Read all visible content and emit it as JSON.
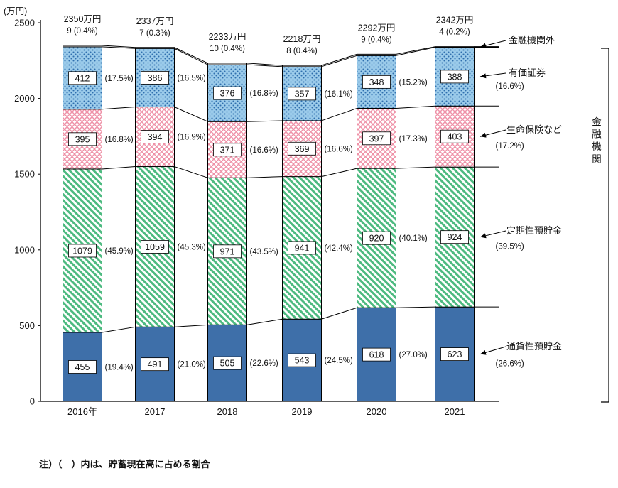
{
  "figure": {
    "y_unit": "(万円)",
    "note": "注）（　）内は、貯蓄現在高に占める割合"
  },
  "legend": {
    "items": [
      {
        "label": "金融機関外"
      },
      {
        "label": "有価証券"
      },
      {
        "label": "生命保険など"
      },
      {
        "label": "定期性預貯金"
      },
      {
        "label": "通貨性預貯金"
      }
    ],
    "group_label": "金融機関"
  },
  "chart_data": {
    "type": "bar",
    "stacked": true,
    "title": "",
    "xlabel": "",
    "ylabel": "(万円)",
    "ylim": [
      0,
      2500
    ],
    "yticks": [
      0,
      500,
      1000,
      1500,
      2000,
      2500
    ],
    "grid": false,
    "legend_position": "right",
    "categories": [
      "2016年",
      "2017",
      "2018",
      "2019",
      "2020",
      "2021"
    ],
    "totals": [
      "2350万円",
      "2337万円",
      "2233万円",
      "2218万円",
      "2292万円",
      "2342万円"
    ],
    "series": [
      {
        "name": "通貨性預貯金",
        "pattern": "solid",
        "values": [
          455,
          491,
          505,
          543,
          618,
          623
        ],
        "percents": [
          "(19.4%)",
          "(21.0%)",
          "(22.6%)",
          "(24.5%)",
          "(27.0%)",
          "(26.6%)"
        ]
      },
      {
        "name": "定期性預貯金",
        "pattern": "green-hatch",
        "values": [
          1079,
          1059,
          971,
          941,
          920,
          924
        ],
        "percents": [
          "(45.9%)",
          "(45.3%)",
          "(43.5%)",
          "(42.4%)",
          "(40.1%)",
          "(39.5%)"
        ]
      },
      {
        "name": "生命保険など",
        "pattern": "pink-cross",
        "values": [
          395,
          394,
          371,
          369,
          397,
          403
        ],
        "percents": [
          "(16.8%)",
          "(16.9%)",
          "(16.6%)",
          "(16.6%)",
          "(17.3%)",
          "(17.2%)"
        ]
      },
      {
        "name": "有価証券",
        "pattern": "blue-dots",
        "values": [
          412,
          386,
          376,
          357,
          348,
          388
        ],
        "percents": [
          "(17.5%)",
          "(16.5%)",
          "(16.8%)",
          "(16.1%)",
          "(15.2%)",
          "(16.6%)"
        ]
      },
      {
        "name": "金融機関外",
        "pattern": "white",
        "values": [
          9,
          7,
          10,
          8,
          9,
          4
        ],
        "percents": [
          "(0.4%)",
          "(0.3%)",
          "(0.4%)",
          "(0.4%)",
          "(0.4%)",
          "(0.2%)"
        ]
      }
    ],
    "colors": {
      "demand_deposit": "#3e6fa9",
      "time_deposit": "#4dba80",
      "insurance": "#ef92a8",
      "securities_bg": "#9bcbea",
      "securities_dot": "#2f6fae",
      "outline": "#000000"
    }
  }
}
